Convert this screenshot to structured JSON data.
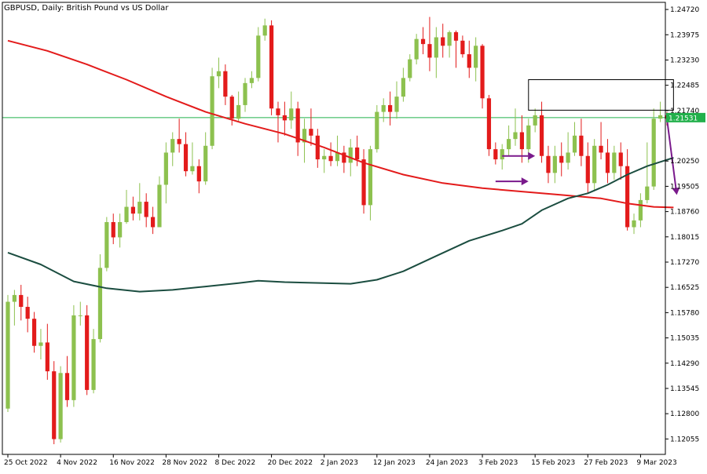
{
  "chart_data": {
    "type": "candlestick",
    "symbol": "GBPUSD",
    "timeframe": "Daily",
    "description": "British Pound vs US Dollar",
    "title": "GBPUSD, Daily:  British Pound vs US Dollar",
    "ylim": [
      1.116,
      1.2493
    ],
    "y_ticks": [
      "1.24720",
      "1.23975",
      "1.23230",
      "1.22485",
      "1.21740",
      "1.20250",
      "1.19505",
      "1.18760",
      "1.18015",
      "1.17270",
      "1.16525",
      "1.15780",
      "1.15035",
      "1.14290",
      "1.13545",
      "1.12800",
      "1.12055"
    ],
    "x_tick_labels": [
      {
        "label": "25 Oct 2022",
        "index": 0
      },
      {
        "label": "4 Nov 2022",
        "index": 8
      },
      {
        "label": "16 Nov 2022",
        "index": 16
      },
      {
        "label": "28 Nov 2022",
        "index": 24
      },
      {
        "label": "8 Dec 2022",
        "index": 32
      },
      {
        "label": "20 Dec 2022",
        "index": 40
      },
      {
        "label": "2 Jan 2023",
        "index": 48
      },
      {
        "label": "12 Jan 2023",
        "index": 56
      },
      {
        "label": "24 Jan 2023",
        "index": 64
      },
      {
        "label": "3 Feb 2023",
        "index": 72
      },
      {
        "label": "15 Feb 2023",
        "index": 80
      },
      {
        "label": "27 Feb 2023",
        "index": 88
      },
      {
        "label": "9 Mar 2023",
        "index": 96
      }
    ],
    "current_price": "1.21531",
    "current_price_value": 1.21531,
    "colors": {
      "bull": "#8dc14f",
      "bear": "#e31b1b",
      "ma_fast": "#e31b1b",
      "ma_slow": "#1b4d40",
      "price_line": "#22b04b",
      "arrow": "#7a1a8c",
      "box": "#000000",
      "axis": "#000000",
      "background": "#ffffff"
    },
    "candles": [
      {
        "o": 1.1295,
        "h": 1.163,
        "l": 1.1285,
        "c": 1.161
      },
      {
        "o": 1.161,
        "h": 1.1645,
        "l": 1.154,
        "c": 1.163
      },
      {
        "o": 1.163,
        "h": 1.166,
        "l": 1.1555,
        "c": 1.1595
      },
      {
        "o": 1.1595,
        "h": 1.1625,
        "l": 1.152,
        "c": 1.156
      },
      {
        "o": 1.156,
        "h": 1.158,
        "l": 1.146,
        "c": 1.148
      },
      {
        "o": 1.148,
        "h": 1.153,
        "l": 1.144,
        "c": 1.149
      },
      {
        "o": 1.149,
        "h": 1.1545,
        "l": 1.138,
        "c": 1.1405
      },
      {
        "o": 1.1405,
        "h": 1.1435,
        "l": 1.119,
        "c": 1.1205
      },
      {
        "o": 1.1205,
        "h": 1.142,
        "l": 1.1195,
        "c": 1.14
      },
      {
        "o": 1.14,
        "h": 1.145,
        "l": 1.13,
        "c": 1.132
      },
      {
        "o": 1.132,
        "h": 1.16,
        "l": 1.13,
        "c": 1.157
      },
      {
        "o": 1.157,
        "h": 1.161,
        "l": 1.154,
        "c": 1.157
      },
      {
        "o": 1.157,
        "h": 1.16,
        "l": 1.1335,
        "c": 1.135
      },
      {
        "o": 1.135,
        "h": 1.153,
        "l": 1.134,
        "c": 1.15
      },
      {
        "o": 1.15,
        "h": 1.175,
        "l": 1.149,
        "c": 1.171
      },
      {
        "o": 1.171,
        "h": 1.186,
        "l": 1.17,
        "c": 1.1845
      },
      {
        "o": 1.1845,
        "h": 1.187,
        "l": 1.178,
        "c": 1.18
      },
      {
        "o": 1.18,
        "h": 1.187,
        "l": 1.177,
        "c": 1.1845
      },
      {
        "o": 1.1845,
        "h": 1.194,
        "l": 1.184,
        "c": 1.189
      },
      {
        "o": 1.189,
        "h": 1.192,
        "l": 1.185,
        "c": 1.187
      },
      {
        "o": 1.187,
        "h": 1.196,
        "l": 1.185,
        "c": 1.1905
      },
      {
        "o": 1.1905,
        "h": 1.193,
        "l": 1.183,
        "c": 1.186
      },
      {
        "o": 1.186,
        "h": 1.189,
        "l": 1.181,
        "c": 1.183
      },
      {
        "o": 1.183,
        "h": 1.198,
        "l": 1.183,
        "c": 1.1955
      },
      {
        "o": 1.1955,
        "h": 1.208,
        "l": 1.19,
        "c": 1.205
      },
      {
        "o": 1.205,
        "h": 1.211,
        "l": 1.201,
        "c": 1.209
      },
      {
        "o": 1.209,
        "h": 1.215,
        "l": 1.205,
        "c": 1.2075
      },
      {
        "o": 1.2075,
        "h": 1.211,
        "l": 1.198,
        "c": 1.1995
      },
      {
        "o": 1.1995,
        "h": 1.208,
        "l": 1.1985,
        "c": 1.201
      },
      {
        "o": 1.201,
        "h": 1.203,
        "l": 1.193,
        "c": 1.1965
      },
      {
        "o": 1.1965,
        "h": 1.211,
        "l": 1.1955,
        "c": 1.207
      },
      {
        "o": 1.207,
        "h": 1.23,
        "l": 1.206,
        "c": 1.2275
      },
      {
        "o": 1.2275,
        "h": 1.233,
        "l": 1.224,
        "c": 1.229
      },
      {
        "o": 1.229,
        "h": 1.231,
        "l": 1.219,
        "c": 1.2215
      },
      {
        "o": 1.2215,
        "h": 1.222,
        "l": 1.213,
        "c": 1.215
      },
      {
        "o": 1.215,
        "h": 1.223,
        "l": 1.214,
        "c": 1.219
      },
      {
        "o": 1.219,
        "h": 1.227,
        "l": 1.217,
        "c": 1.2255
      },
      {
        "o": 1.2255,
        "h": 1.229,
        "l": 1.224,
        "c": 1.227
      },
      {
        "o": 1.227,
        "h": 1.242,
        "l": 1.226,
        "c": 1.2395
      },
      {
        "o": 1.2395,
        "h": 1.2445,
        "l": 1.238,
        "c": 1.2425
      },
      {
        "o": 1.2425,
        "h": 1.244,
        "l": 1.216,
        "c": 1.218
      },
      {
        "o": 1.218,
        "h": 1.22,
        "l": 1.208,
        "c": 1.216
      },
      {
        "o": 1.216,
        "h": 1.22,
        "l": 1.21,
        "c": 1.2145
      },
      {
        "o": 1.2145,
        "h": 1.223,
        "l": 1.212,
        "c": 1.218
      },
      {
        "o": 1.218,
        "h": 1.22,
        "l": 1.204,
        "c": 1.208
      },
      {
        "o": 1.208,
        "h": 1.215,
        "l": 1.202,
        "c": 1.212
      },
      {
        "o": 1.212,
        "h": 1.218,
        "l": 1.207,
        "c": 1.21
      },
      {
        "o": 1.21,
        "h": 1.212,
        "l": 1.2005,
        "c": 1.203
      },
      {
        "o": 1.203,
        "h": 1.206,
        "l": 1.199,
        "c": 1.204
      },
      {
        "o": 1.204,
        "h": 1.208,
        "l": 1.201,
        "c": 1.2025
      },
      {
        "o": 1.2025,
        "h": 1.21,
        "l": 1.201,
        "c": 1.205
      },
      {
        "o": 1.205,
        "h": 1.207,
        "l": 1.199,
        "c": 1.202
      },
      {
        "o": 1.202,
        "h": 1.209,
        "l": 1.198,
        "c": 1.2065
      },
      {
        "o": 1.2065,
        "h": 1.21,
        "l": 1.201,
        "c": 1.203
      },
      {
        "o": 1.203,
        "h": 1.206,
        "l": 1.187,
        "c": 1.1895
      },
      {
        "o": 1.1895,
        "h": 1.207,
        "l": 1.185,
        "c": 1.206
      },
      {
        "o": 1.206,
        "h": 1.219,
        "l": 1.205,
        "c": 1.217
      },
      {
        "o": 1.217,
        "h": 1.221,
        "l": 1.214,
        "c": 1.219
      },
      {
        "o": 1.219,
        "h": 1.223,
        "l": 1.213,
        "c": 1.217
      },
      {
        "o": 1.217,
        "h": 1.226,
        "l": 1.215,
        "c": 1.2215
      },
      {
        "o": 1.2215,
        "h": 1.23,
        "l": 1.22,
        "c": 1.227
      },
      {
        "o": 1.227,
        "h": 1.234,
        "l": 1.226,
        "c": 1.2325
      },
      {
        "o": 1.2325,
        "h": 1.24,
        "l": 1.231,
        "c": 1.2385
      },
      {
        "o": 1.2385,
        "h": 1.242,
        "l": 1.234,
        "c": 1.237
      },
      {
        "o": 1.237,
        "h": 1.245,
        "l": 1.229,
        "c": 1.233
      },
      {
        "o": 1.233,
        "h": 1.242,
        "l": 1.227,
        "c": 1.239
      },
      {
        "o": 1.239,
        "h": 1.243,
        "l": 1.233,
        "c": 1.2365
      },
      {
        "o": 1.2365,
        "h": 1.241,
        "l": 1.233,
        "c": 1.2405
      },
      {
        "o": 1.2405,
        "h": 1.241,
        "l": 1.23,
        "c": 1.238
      },
      {
        "o": 1.238,
        "h": 1.2395,
        "l": 1.233,
        "c": 1.234
      },
      {
        "o": 1.234,
        "h": 1.238,
        "l": 1.227,
        "c": 1.23
      },
      {
        "o": 1.23,
        "h": 1.239,
        "l": 1.226,
        "c": 1.2365
      },
      {
        "o": 1.2365,
        "h": 1.237,
        "l": 1.218,
        "c": 1.221
      },
      {
        "o": 1.221,
        "h": 1.222,
        "l": 1.204,
        "c": 1.206
      },
      {
        "o": 1.206,
        "h": 1.208,
        "l": 1.2015,
        "c": 1.203
      },
      {
        "o": 1.203,
        "h": 1.2075,
        "l": 1.2,
        "c": 1.206
      },
      {
        "o": 1.206,
        "h": 1.213,
        "l": 1.204,
        "c": 1.209
      },
      {
        "o": 1.209,
        "h": 1.218,
        "l": 1.207,
        "c": 1.211
      },
      {
        "o": 1.211,
        "h": 1.216,
        "l": 1.202,
        "c": 1.206
      },
      {
        "o": 1.206,
        "h": 1.215,
        "l": 1.202,
        "c": 1.213
      },
      {
        "o": 1.213,
        "h": 1.218,
        "l": 1.211,
        "c": 1.216
      },
      {
        "o": 1.216,
        "h": 1.22,
        "l": 1.202,
        "c": 1.204
      },
      {
        "o": 1.204,
        "h": 1.207,
        "l": 1.196,
        "c": 1.199
      },
      {
        "o": 1.199,
        "h": 1.207,
        "l": 1.196,
        "c": 1.204
      },
      {
        "o": 1.204,
        "h": 1.208,
        "l": 1.198,
        "c": 1.202
      },
      {
        "o": 1.202,
        "h": 1.211,
        "l": 1.2,
        "c": 1.205
      },
      {
        "o": 1.205,
        "h": 1.214,
        "l": 1.204,
        "c": 1.21
      },
      {
        "o": 1.21,
        "h": 1.215,
        "l": 1.201,
        "c": 1.204
      },
      {
        "o": 1.204,
        "h": 1.208,
        "l": 1.193,
        "c": 1.196
      },
      {
        "o": 1.196,
        "h": 1.209,
        "l": 1.194,
        "c": 1.207
      },
      {
        "o": 1.207,
        "h": 1.214,
        "l": 1.203,
        "c": 1.205
      },
      {
        "o": 1.205,
        "h": 1.209,
        "l": 1.196,
        "c": 1.199
      },
      {
        "o": 1.199,
        "h": 1.207,
        "l": 1.197,
        "c": 1.205
      },
      {
        "o": 1.205,
        "h": 1.208,
        "l": 1.197,
        "c": 1.201
      },
      {
        "o": 1.201,
        "h": 1.206,
        "l": 1.182,
        "c": 1.183
      },
      {
        "o": 1.183,
        "h": 1.187,
        "l": 1.181,
        "c": 1.185
      },
      {
        "o": 1.185,
        "h": 1.193,
        "l": 1.183,
        "c": 1.191
      },
      {
        "o": 1.191,
        "h": 1.208,
        "l": 1.19,
        "c": 1.195
      },
      {
        "o": 1.195,
        "h": 1.218,
        "l": 1.194,
        "c": 1.215
      },
      {
        "o": 1.215,
        "h": 1.22,
        "l": 1.214,
        "c": 1.216
      },
      {
        "o": 1.216,
        "h": 1.217,
        "l": 1.213,
        "c": 1.215
      }
    ],
    "ma_fast": [
      [
        0,
        1.238
      ],
      [
        6,
        1.235
      ],
      [
        12,
        1.231
      ],
      [
        18,
        1.2265
      ],
      [
        24,
        1.2215
      ],
      [
        30,
        1.217
      ],
      [
        36,
        1.2135
      ],
      [
        42,
        1.2105
      ],
      [
        48,
        1.2065
      ],
      [
        54,
        1.202
      ],
      [
        60,
        1.1985
      ],
      [
        66,
        1.196
      ],
      [
        72,
        1.1945
      ],
      [
        78,
        1.1935
      ],
      [
        84,
        1.1925
      ],
      [
        90,
        1.1915
      ],
      [
        94,
        1.19
      ],
      [
        98,
        1.189
      ],
      [
        101,
        1.1888
      ]
    ],
    "ma_slow": [
      [
        0,
        1.1755
      ],
      [
        5,
        1.172
      ],
      [
        10,
        1.167
      ],
      [
        15,
        1.165
      ],
      [
        20,
        1.164
      ],
      [
        25,
        1.1645
      ],
      [
        30,
        1.1655
      ],
      [
        35,
        1.1665
      ],
      [
        38,
        1.1672
      ],
      [
        42,
        1.1668
      ],
      [
        48,
        1.1665
      ],
      [
        52,
        1.1663
      ],
      [
        56,
        1.1675
      ],
      [
        60,
        1.17
      ],
      [
        65,
        1.1745
      ],
      [
        70,
        1.179
      ],
      [
        75,
        1.182
      ],
      [
        78,
        1.184
      ],
      [
        81,
        1.188
      ],
      [
        85,
        1.1915
      ],
      [
        88,
        1.193
      ],
      [
        91,
        1.1955
      ],
      [
        94,
        1.1985
      ],
      [
        97,
        1.201
      ],
      [
        101,
        1.2035
      ]
    ],
    "annotations": {
      "zone": {
        "x_from": 79,
        "x_to": 101,
        "y_low": 1.2175,
        "y_high": 1.2265
      },
      "arrows": [
        {
          "x_from": 75,
          "y_from": 1.204,
          "x_to": 80,
          "y_to": 1.204
        },
        {
          "x_from": 74,
          "y_from": 1.1965,
          "x_to": 79,
          "y_to": 1.1965
        },
        {
          "x_from": 100,
          "y_from": 1.215,
          "x_to": 101.5,
          "y_to": 1.1925
        }
      ]
    }
  }
}
